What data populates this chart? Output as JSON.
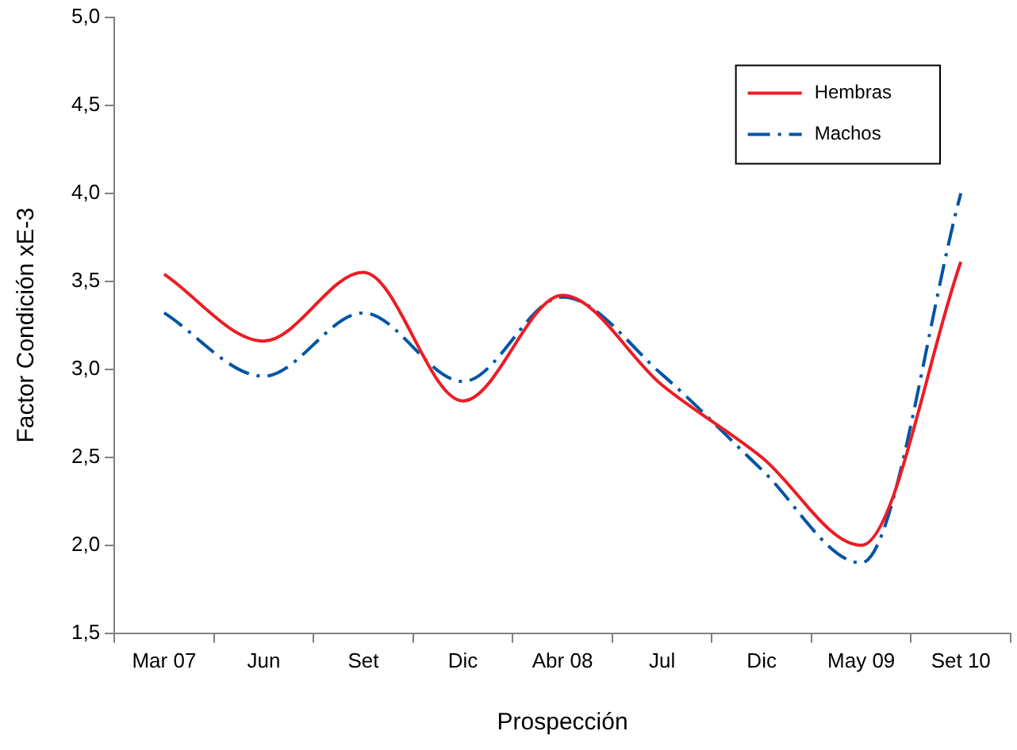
{
  "chart_data": {
    "type": "line",
    "xlabel": "Prospección",
    "ylabel": "Factor Condición xE-3",
    "categories": [
      "Mar 07",
      "Jun",
      "Set",
      "Dic",
      "Abr 08",
      "Jul",
      "Dic",
      "May 09",
      "Set 10"
    ],
    "series": [
      {
        "name": "Hembras",
        "color": "#ed1c24",
        "line_style": "solid",
        "values": [
          3.54,
          3.16,
          3.55,
          2.82,
          3.42,
          2.91,
          2.5,
          2.0,
          3.61
        ]
      },
      {
        "name": "Machos",
        "color": "#0054a6",
        "line_style": "dashed",
        "values": [
          3.32,
          2.96,
          3.32,
          2.93,
          3.41,
          2.97,
          2.43,
          1.9,
          4.0
        ]
      }
    ],
    "ylim": [
      1.5,
      5
    ],
    "yticks": [
      {
        "value": 1.5,
        "label": "1,5"
      },
      {
        "value": 2,
        "label": "2,0"
      },
      {
        "value": 2.5,
        "label": "2,5"
      },
      {
        "value": 3,
        "label": "3,0"
      },
      {
        "value": 3.5,
        "label": "3,5"
      },
      {
        "value": 4,
        "label": "4,0"
      },
      {
        "value": 4.5,
        "label": "4,5"
      },
      {
        "value": 5,
        "label": "5,0"
      }
    ],
    "grid": false,
    "legend": "top right",
    "marker": "none"
  }
}
